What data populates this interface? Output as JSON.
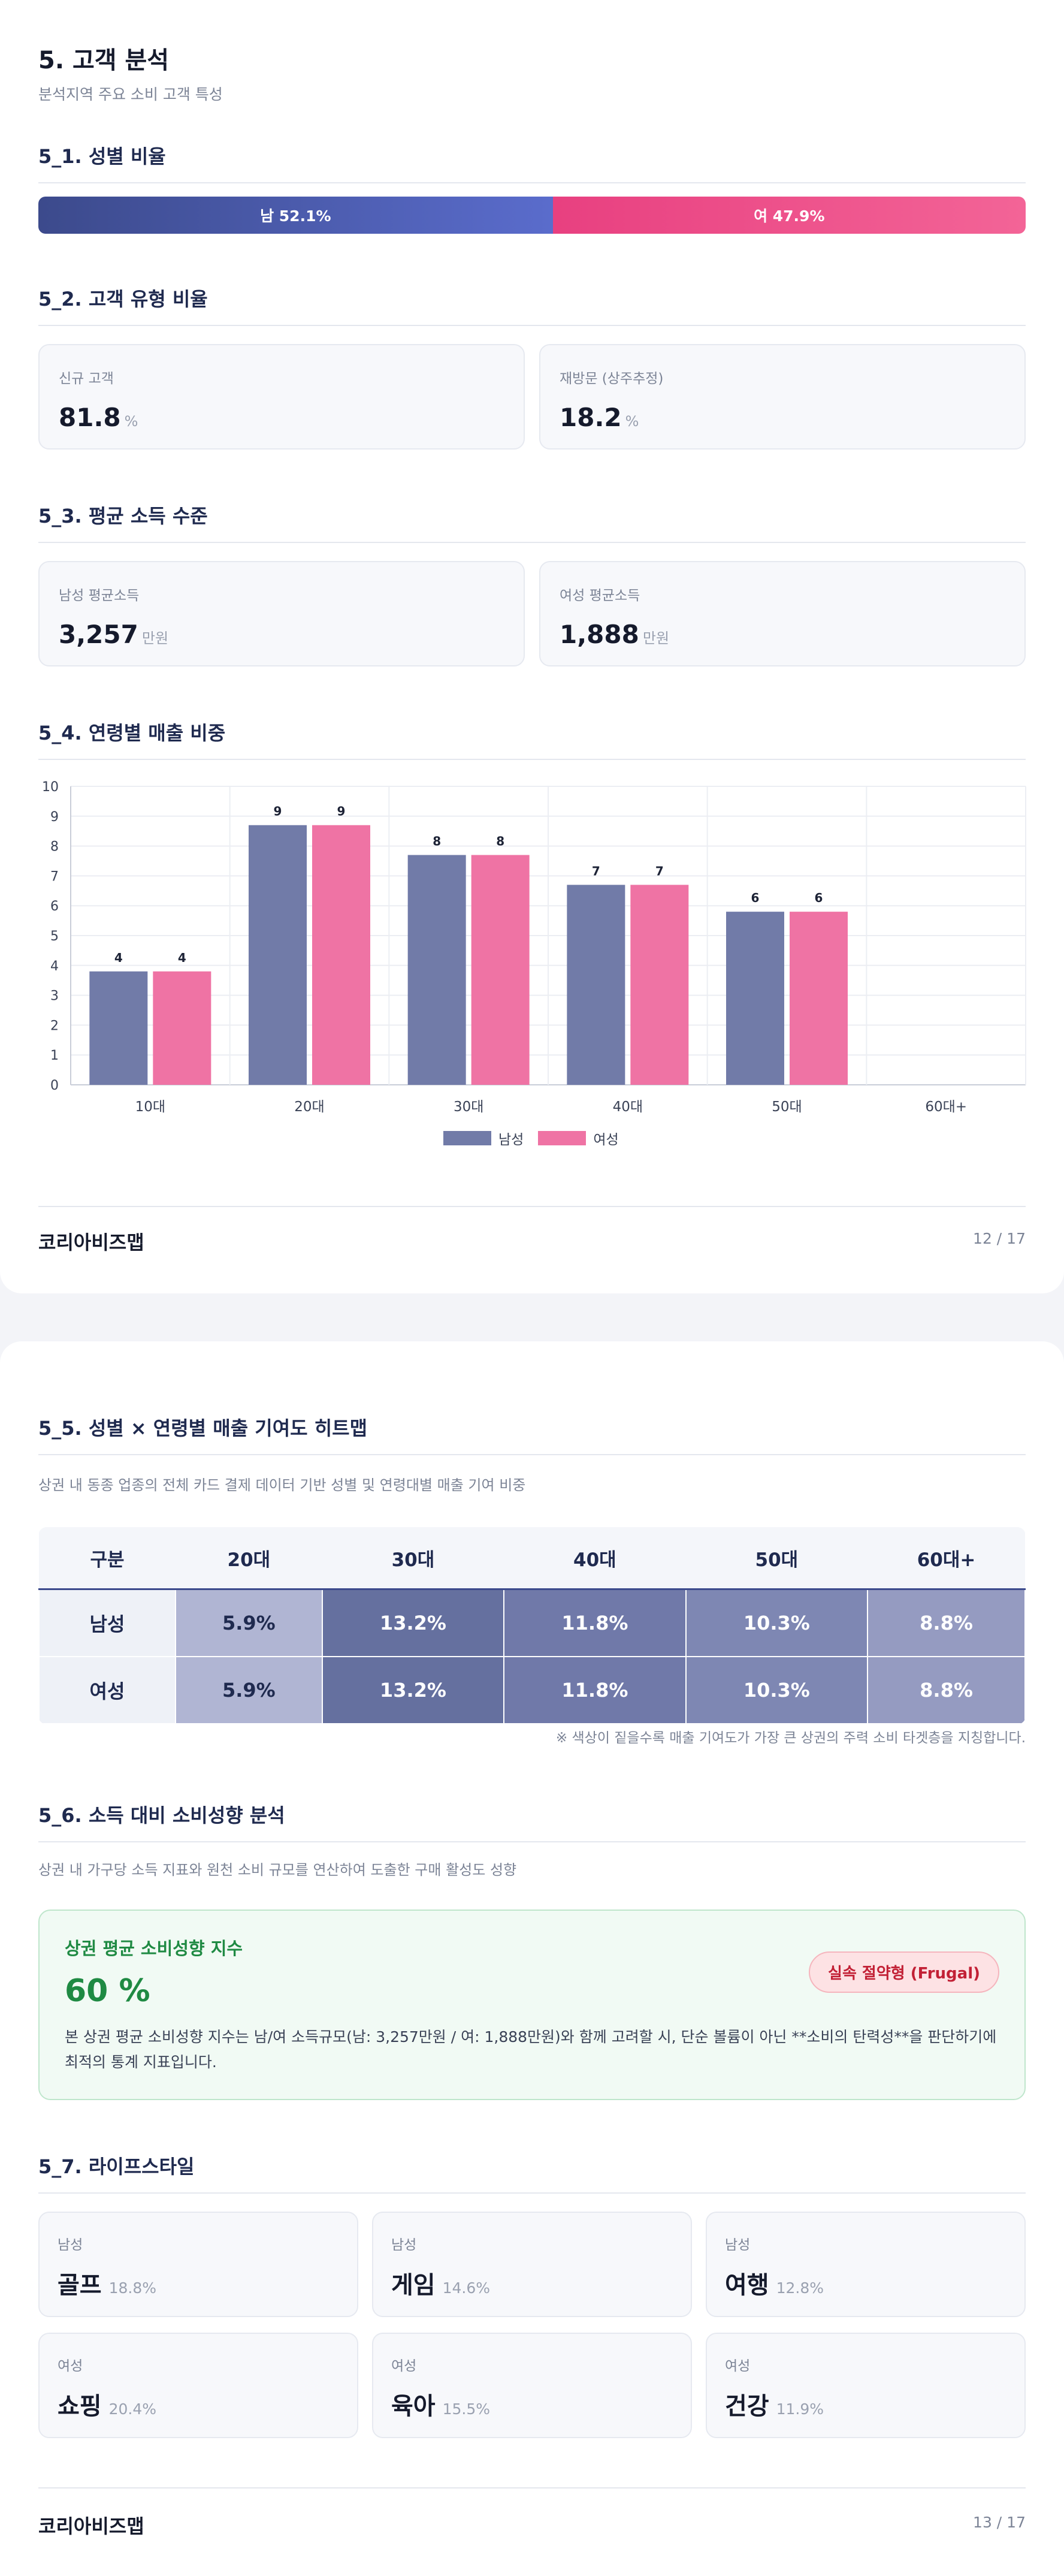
{
  "page1": {
    "title": "5. 고객 분석",
    "subtitle": "분석지역 주요 소비 고객 특성",
    "gender_section": {
      "title": "5_1. 성별 비율",
      "male_label": "남 52.1%",
      "female_label": "여 47.9%",
      "male_pct": 52.1,
      "female_pct": 47.9,
      "male_color": "#4a5aad",
      "female_color": "#ec4c88"
    },
    "customer_type": {
      "title": "5_2. 고객 유형 비율",
      "cards": [
        {
          "label": "신규 고객",
          "value": "81.8",
          "unit": "%"
        },
        {
          "label": "재방문 (상주추정)",
          "value": "18.2",
          "unit": "%"
        }
      ]
    },
    "income": {
      "title": "5_3. 평균 소득 수준",
      "cards": [
        {
          "label": "남성 평균소득",
          "value": "3,257",
          "unit": "만원"
        },
        {
          "label": "여성 평균소득",
          "value": "1,888",
          "unit": "만원"
        }
      ]
    },
    "age_sales": {
      "title": "5_4. 연령별 매출 비중"
    },
    "footer": {
      "brand": "코리아비즈맵",
      "page": "12 / 17"
    }
  },
  "chart_data": {
    "type": "bar",
    "categories": [
      "10대",
      "20대",
      "30대",
      "40대",
      "50대",
      "60대+"
    ],
    "series": [
      {
        "name": "남성",
        "values": [
          3.8,
          8.7,
          7.7,
          6.7,
          5.8,
          0
        ],
        "labels": [
          "4",
          "9",
          "8",
          "7",
          "6",
          ""
        ]
      },
      {
        "name": "여성",
        "values": [
          3.8,
          8.7,
          7.7,
          6.7,
          5.8,
          0
        ],
        "labels": [
          "4",
          "9",
          "8",
          "7",
          "6",
          ""
        ]
      }
    ],
    "yticks": [
      "0",
      "1",
      "2",
      "3",
      "4",
      "5",
      "6",
      "7",
      "8",
      "9",
      "10"
    ],
    "ylim": [
      0,
      10
    ],
    "grid": true,
    "legend": "bottom",
    "colors": [
      "#717ba8",
      "#ef73a4"
    ]
  },
  "page2": {
    "heatmap": {
      "title": "5_5. 성별 × 연령별 매출 기여도 히트맵",
      "desc": "상권 내 동종 업종의 전체 카드 결제 데이터 기반 성별 및 연령대별 매출 기여 비중",
      "header": [
        "구분",
        "20대",
        "30대",
        "40대",
        "50대",
        "60대+"
      ],
      "rows": [
        {
          "label": "남성",
          "cells": [
            "5.9%",
            "13.2%",
            "11.8%",
            "10.3%",
            "8.8%"
          ]
        },
        {
          "label": "여성",
          "cells": [
            "5.9%",
            "13.2%",
            "11.8%",
            "10.3%",
            "8.8%"
          ]
        }
      ],
      "cell_colors": [
        "#b0b5d3",
        "#65709f",
        "#7079a9",
        "#7e87b3",
        "#959bc1"
      ],
      "cell_text_colors": [
        "#1f2a4f",
        "#ffffff",
        "#ffffff",
        "#ffffff",
        "#ffffff"
      ],
      "note": "※ 색상이 짙을수록 매출 기여도가 가장 큰 상권의 주력 소비 타겟층을 지칭합니다."
    },
    "propensity": {
      "title": "5_6. 소득 대비 소비성향 분석",
      "desc": "상권 내 가구당 소득 지표와 원천 소비 규모를 연산하여 도출한 구매 활성도 성향",
      "card_label": "상권 평균 소비성향 지수",
      "card_value": "60 %",
      "badge": "실속 절약형 (Frugal)",
      "text": "본 상권 평균 소비성향 지수는 남/여 소득규모(남: 3,257만원 / 여: 1,888만원)와 함께 고려할 시, 단순 볼륨이 아닌 **소비의 탄력성**을 판단하기에 최적의 통계 지표입니다."
    },
    "lifestyle": {
      "title": "5_7. 라이프스타일",
      "items": [
        {
          "gender": "남성",
          "name": "골프",
          "pct": "18.8%"
        },
        {
          "gender": "남성",
          "name": "게임",
          "pct": "14.6%"
        },
        {
          "gender": "남성",
          "name": "여행",
          "pct": "12.8%"
        },
        {
          "gender": "여성",
          "name": "쇼핑",
          "pct": "20.4%"
        },
        {
          "gender": "여성",
          "name": "육아",
          "pct": "15.5%"
        },
        {
          "gender": "여성",
          "name": "건강",
          "pct": "11.9%"
        }
      ]
    },
    "footer": {
      "brand": "코리아비즈맵",
      "page": "13 / 17"
    }
  }
}
